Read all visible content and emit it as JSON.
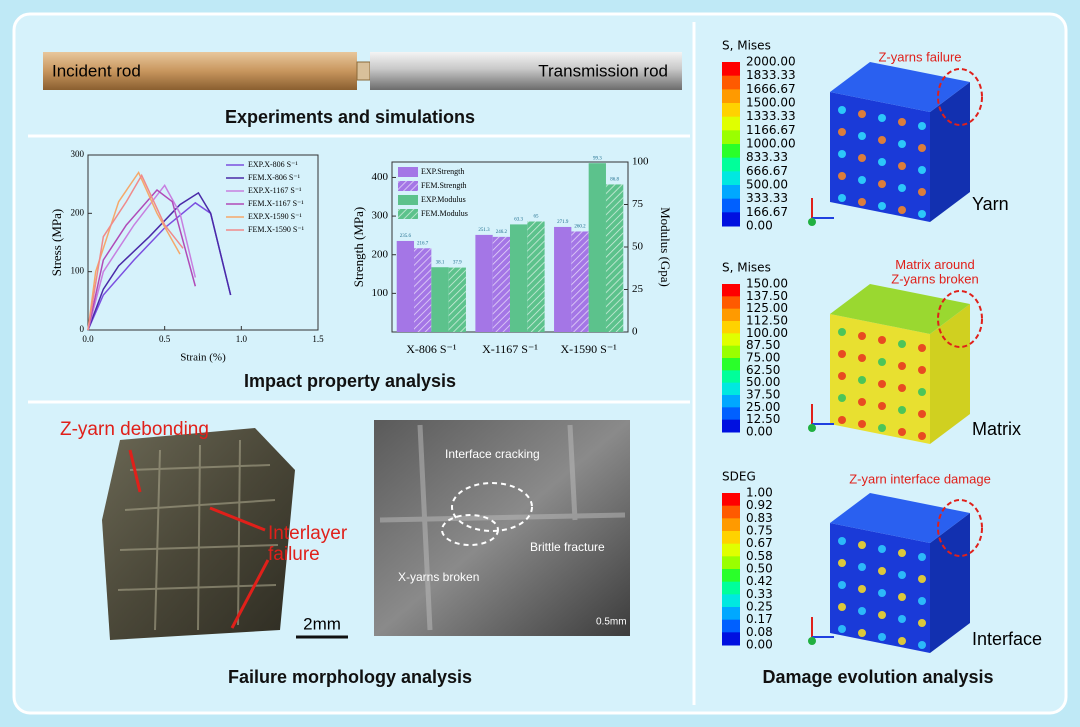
{
  "experiments": {
    "incident_rod": "Incident rod",
    "transmission_rod": "Transmission rod",
    "caption": "Experiments and simulations"
  },
  "impact": {
    "caption": "Impact property analysis",
    "charts": [
      {
        "type": "line",
        "xlabel": "Strain (%)",
        "ylabel": "Stress (MPa)",
        "xlim": [
          0,
          1.5
        ],
        "xticks": [
          {
            "value": 0,
            "label": "0.0"
          },
          0.5,
          {
            "value": 1,
            "label": "1.0"
          },
          1.5
        ],
        "ylim": [
          0,
          300
        ],
        "yticks": [
          0,
          100,
          200,
          300
        ],
        "series": [
          {
            "name": "EXP.X-806 S⁻¹",
            "color": "#7b4fe0",
            "x": [
              0,
              0.1,
              0.3,
              0.5,
              0.7,
              0.8,
              0.93
            ],
            "y": [
              0,
              60,
              120,
              175,
              218,
              200,
              60
            ]
          },
          {
            "name": "FEM.X-806 S⁻¹",
            "color": "#4a2aa8",
            "x": [
              0,
              0.1,
              0.2,
              0.4,
              0.6,
              0.72,
              0.8,
              0.93
            ],
            "y": [
              0,
              70,
              110,
              160,
              215,
              235,
              200,
              60
            ]
          },
          {
            "name": "EXP.X-1167 S⁻¹",
            "color": "#c77fe0",
            "x": [
              0,
              0.1,
              0.3,
              0.5,
              0.6,
              0.7
            ],
            "y": [
              0,
              100,
              180,
              248,
              200,
              90
            ]
          },
          {
            "name": "FEM.X-1167 S⁻¹",
            "color": "#b04ab8",
            "x": [
              0,
              0.1,
              0.25,
              0.45,
              0.55,
              0.7
            ],
            "y": [
              0,
              120,
              180,
              240,
              220,
              75
            ]
          },
          {
            "name": "EXP.X-1590 S⁻¹",
            "color": "#f5a86a",
            "x": [
              0,
              0.05,
              0.2,
              0.33,
              0.45,
              0.6
            ],
            "y": [
              0,
              100,
              220,
              270,
              200,
              130
            ]
          },
          {
            "name": "FEM.X-1590 S⁻¹",
            "color": "#f08a8a",
            "x": [
              0,
              0.1,
              0.25,
              0.35,
              0.5,
              0.62
            ],
            "y": [
              0,
              160,
              220,
              265,
              180,
              140
            ]
          }
        ]
      },
      {
        "type": "bar",
        "ylabel": "Strength (MPa)",
        "y2label": "Modulus (Gpa)",
        "categories": [
          "X-806 S⁻¹",
          "X-1167 S⁻¹",
          "X-1590 S⁻¹"
        ],
        "ylim": [
          0,
          440
        ],
        "yticks": [
          100,
          200,
          300,
          400
        ],
        "y2lim": [
          0,
          100
        ],
        "y2ticks": [
          0,
          25,
          50,
          75,
          100
        ],
        "series": [
          {
            "name": "EXP.Strength",
            "color": "#a476e6",
            "values": [
              235.6,
              251.3,
              271.9
            ]
          },
          {
            "name": "FEM.Strength",
            "color": "#a476e6",
            "hatch": true,
            "values": [
              216.7,
              246.2,
              260.2
            ]
          },
          {
            "name": "EXP.Modulus",
            "color": "#5cc28c",
            "axis": "y2",
            "values": [
              38.1,
              63.3,
              99.3
            ]
          },
          {
            "name": "FEM.Modulus",
            "color": "#5cc28c",
            "hatch": true,
            "axis": "y2",
            "values": [
              37.9,
              65.0,
              86.8
            ]
          }
        ]
      }
    ]
  },
  "failure": {
    "caption": "Failure morphology analysis",
    "photo": {
      "debonding": "Z-yarn debonding",
      "interlayer": "Interlayer\nfailure",
      "scale": "2mm"
    },
    "sem": {
      "cracking": "Interface cracking",
      "broken": "X-yarns broken",
      "brittle": "Brittle fracture",
      "scale": "0.5mm"
    }
  },
  "damage": {
    "caption": "Damage evolution analysis",
    "panels": [
      {
        "title": "S, Mises",
        "annotation": "Z-yarns failure",
        "label": "Yarn",
        "levels": [
          "2000.00",
          "1833.33",
          "1666.67",
          "1500.00",
          "1333.33",
          "1166.67",
          "1000.00",
          "833.33",
          "666.67",
          "500.00",
          "333.33",
          "166.67",
          "0.00"
        ]
      },
      {
        "title": "S, Mises",
        "annotation": "Matrix around\nZ-yarns broken",
        "label": "Matrix",
        "levels": [
          "150.00",
          "137.50",
          "125.00",
          "112.50",
          "100.00",
          "87.50",
          "75.00",
          "62.50",
          "50.00",
          "37.50",
          "25.00",
          "12.50",
          "0.00"
        ]
      },
      {
        "title": "SDEG",
        "annotation": "Z-yarn interface damage",
        "label": "Interface",
        "levels": [
          "1.00",
          "0.92",
          "0.83",
          "0.75",
          "0.67",
          "0.58",
          "0.50",
          "0.42",
          "0.33",
          "0.25",
          "0.17",
          "0.08",
          "0.00"
        ]
      }
    ]
  }
}
